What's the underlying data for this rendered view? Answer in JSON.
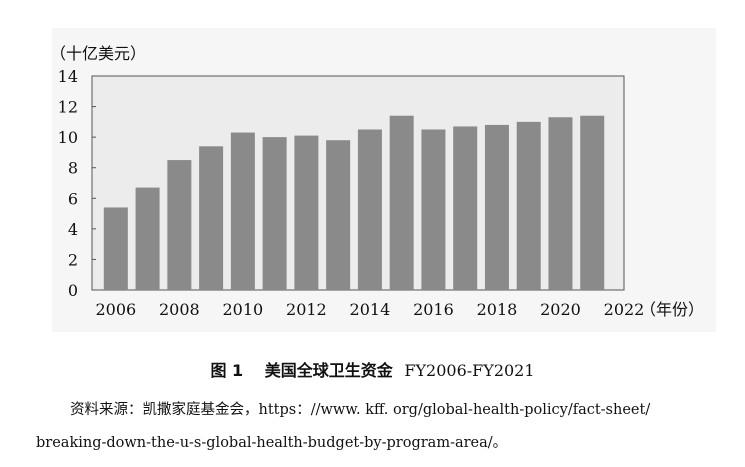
{
  "chart_data": {
    "type": "bar",
    "unit_label": "（十亿美元）",
    "xlabel": "（年份）",
    "categories": [
      "2006",
      "2007",
      "2008",
      "2009",
      "2010",
      "2011",
      "2012",
      "2013",
      "2014",
      "2015",
      "2016",
      "2017",
      "2018",
      "2019",
      "2020",
      "2021"
    ],
    "values": [
      5.4,
      6.7,
      8.5,
      9.4,
      10.3,
      10.0,
      10.1,
      9.8,
      10.5,
      11.4,
      10.5,
      10.7,
      10.8,
      11.0,
      11.3,
      11.4
    ],
    "ylim": [
      0,
      14
    ],
    "yticks": [
      "0",
      "2",
      "4",
      "6",
      "8",
      "10",
      "12",
      "14"
    ],
    "xticks": [
      "2006",
      "2008",
      "2010",
      "2012",
      "2014",
      "2016",
      "2018",
      "2020",
      "2022"
    ],
    "bar_color": "#8a8a8a",
    "plot_background": "#ececec"
  },
  "caption": {
    "number": "图 1",
    "title": "美国全球卫生资金",
    "range": "FY2006-FY2021"
  },
  "source": {
    "line1": "资料来源：凯撒家庭基金会，https：//www. kff. org/global-health-policy/fact-sheet/",
    "line2": "breaking-down-the-u-s-global-health-budget-by-program-area/。"
  }
}
